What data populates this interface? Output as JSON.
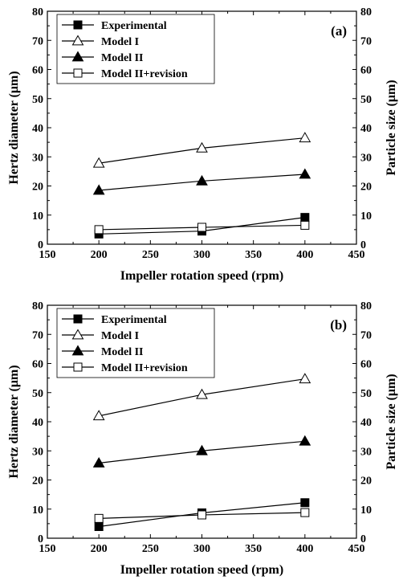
{
  "chart_data": [
    {
      "type": "line",
      "panel_label": "(a)",
      "xlabel": "Impeller rotation speed (rpm)",
      "ylabel": "Hertz diameter (μm)",
      "ylabel_right": "Particle size (μm)",
      "xlim": [
        150,
        450
      ],
      "ylim": [
        0,
        80
      ],
      "xticks": [
        150,
        200,
        250,
        300,
        350,
        400,
        450
      ],
      "yticks": [
        0,
        10,
        20,
        30,
        40,
        50,
        60,
        70,
        80
      ],
      "grid": false,
      "legend_position": "top-left",
      "x": [
        200,
        300,
        400
      ],
      "series": [
        {
          "name": "Experimental",
          "marker": "square-filled",
          "values": [
            3.5,
            4.5,
            9.2
          ]
        },
        {
          "name": "Model I",
          "marker": "triangle-open",
          "values": [
            27.8,
            33.0,
            36.5
          ]
        },
        {
          "name": "Model II",
          "marker": "triangle-filled",
          "values": [
            18.5,
            21.7,
            24.0
          ]
        },
        {
          "name": "Model II+revision",
          "marker": "square-open",
          "values": [
            5.0,
            5.8,
            6.5
          ]
        }
      ]
    },
    {
      "type": "line",
      "panel_label": "(b)",
      "xlabel": "Impeller rotation speed (rpm)",
      "ylabel": "Hertz diameter (μm)",
      "ylabel_right": "Particle size (μm)",
      "xlim": [
        150,
        450
      ],
      "ylim": [
        0,
        80
      ],
      "xticks": [
        150,
        200,
        250,
        300,
        350,
        400,
        450
      ],
      "yticks": [
        0,
        10,
        20,
        30,
        40,
        50,
        60,
        70,
        80
      ],
      "grid": false,
      "legend_position": "top-left",
      "x": [
        200,
        300,
        400
      ],
      "series": [
        {
          "name": "Experimental",
          "marker": "square-filled",
          "values": [
            4.0,
            8.7,
            12.2
          ]
        },
        {
          "name": "Model I",
          "marker": "triangle-open",
          "values": [
            42.0,
            49.3,
            54.7
          ]
        },
        {
          "name": "Model II",
          "marker": "triangle-filled",
          "values": [
            25.8,
            30.0,
            33.3
          ]
        },
        {
          "name": "Model II+revision",
          "marker": "square-open",
          "values": [
            6.8,
            8.0,
            8.8
          ]
        }
      ]
    }
  ]
}
